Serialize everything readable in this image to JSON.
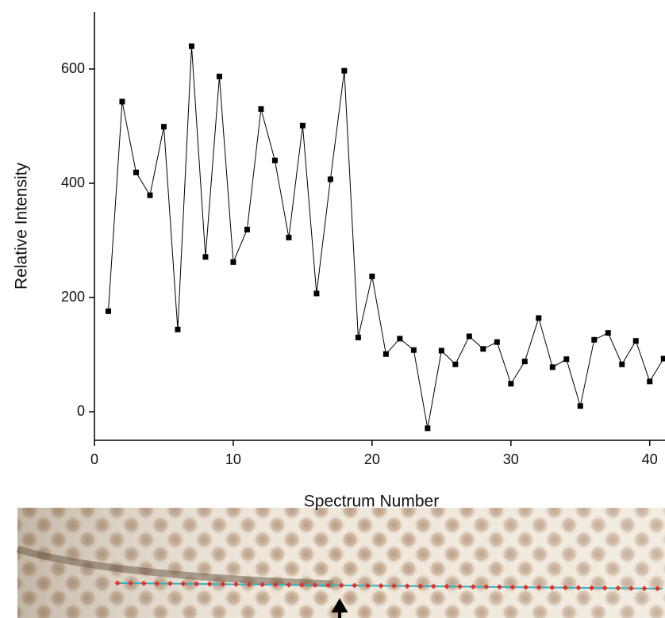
{
  "chart_data": {
    "type": "line",
    "x_label": "Spectrum Number",
    "y_label": "Relative Intensity",
    "x": [
      1,
      2,
      3,
      4,
      5,
      6,
      7,
      8,
      9,
      10,
      11,
      12,
      13,
      14,
      15,
      16,
      17,
      18,
      19,
      20,
      21,
      22,
      23,
      24,
      25,
      26,
      27,
      28,
      29,
      30,
      31,
      32,
      33,
      34,
      35,
      36,
      37,
      38,
      39,
      40,
      41
    ],
    "series": [
      {
        "color": "#000000",
        "values": [
          176,
          543,
          419,
          379,
          499,
          144,
          640,
          271,
          587,
          262,
          319,
          530,
          440,
          305,
          501,
          207,
          407,
          597,
          130,
          237,
          101,
          128,
          108,
          -29,
          107,
          83,
          132,
          110,
          122,
          49,
          88,
          164,
          78,
          92,
          10,
          126,
          138,
          83,
          124,
          53,
          93
        ]
      }
    ],
    "xlim": [
      0,
      41.1
    ],
    "ylim": [
      -50,
      700
    ],
    "xticks": [
      0,
      10,
      20,
      30,
      40
    ],
    "yticks": [
      0,
      200,
      400,
      600
    ]
  }
}
